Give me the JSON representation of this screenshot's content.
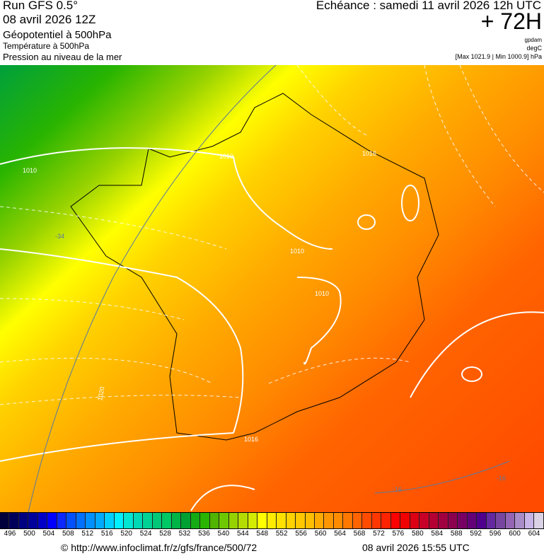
{
  "header": {
    "run": "Run GFS 0.5°",
    "date": "08 avril 2026 12Z",
    "layer1": "Géopotentiel à 500hPa",
    "layer2": "Température à 500hPa",
    "layer3": "Pression au niveau de la mer",
    "echeance": "Echéance : samedi 11 avril 2026 12h UTC",
    "lead": "+ 72H",
    "unit1": "gpdam",
    "unit2": "degC",
    "pressure_range": "[Max 1021.9 | Min 1000.9] hPa"
  },
  "map": {
    "region": "France",
    "isobar_labels": [
      "1010",
      "1010",
      "1010",
      "1016",
      "1020",
      "1010",
      "1016"
    ],
    "temp_labels": [
      "-34",
      "-16",
      "-16"
    ]
  },
  "colorbar": {
    "ticks": [
      "496",
      "500",
      "504",
      "508",
      "512",
      "516",
      "520",
      "524",
      "528",
      "532",
      "536",
      "540",
      "544",
      "548",
      "552",
      "556",
      "560",
      "564",
      "568",
      "572",
      "576",
      "580",
      "584",
      "588",
      "592",
      "596",
      "600",
      "604"
    ],
    "colors": [
      "#00003c",
      "#00005a",
      "#000080",
      "#00009a",
      "#0000c8",
      "#0000ff",
      "#0a28ff",
      "#0050ff",
      "#0070ff",
      "#0090ff",
      "#00aaff",
      "#00d0ff",
      "#00f0ff",
      "#00e6d2",
      "#00d7b4",
      "#00d296",
      "#00c878",
      "#00c864",
      "#00b446",
      "#00a032",
      "#14aa14",
      "#28b400",
      "#50b400",
      "#6ec800",
      "#96d200",
      "#b4dc00",
      "#d2eb00",
      "#ffff00",
      "#ffeb00",
      "#ffe100",
      "#ffd200",
      "#ffc800",
      "#ffbe00",
      "#ffaa00",
      "#ff9600",
      "#ff8c00",
      "#ff7800",
      "#ff6400",
      "#ff4b00",
      "#ff3700",
      "#ff2300",
      "#ff0000",
      "#f00000",
      "#dc0014",
      "#c80028",
      "#b40032",
      "#a00040",
      "#8c0050",
      "#780064",
      "#640078",
      "#50008c",
      "#6428a0",
      "#7846a0",
      "#9664b4",
      "#aa8cc8",
      "#c8b4e6",
      "#dcd2e6"
    ]
  },
  "footer": {
    "source": "© http://www.infoclimat.fr/z/gfs/france/500/72",
    "generated": "08 avril 2026 15:55 UTC"
  }
}
